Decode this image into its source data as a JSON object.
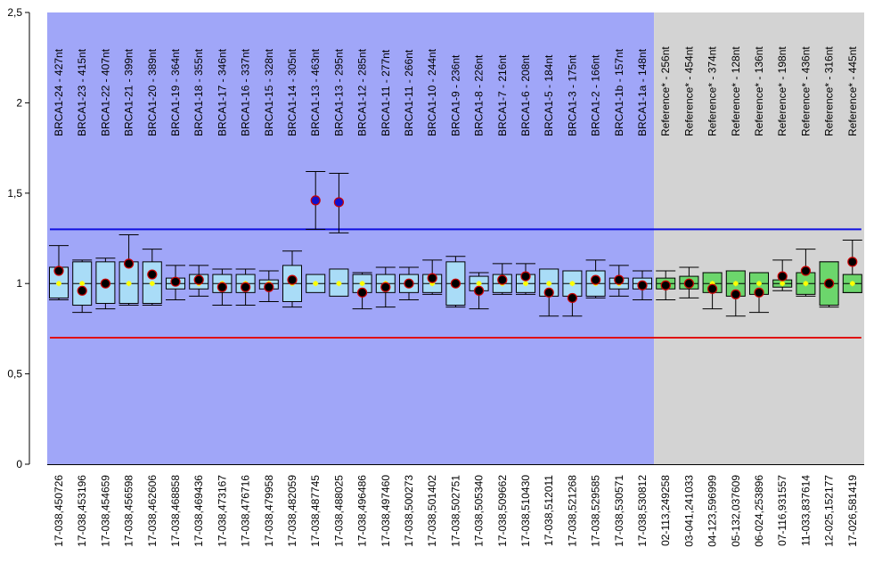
{
  "chart_data": {
    "type": "boxplot",
    "ylim": [
      0,
      2.5
    ],
    "yticks": [
      {
        "value": 0,
        "label": "0"
      },
      {
        "value": 0.5,
        "label": "0,5"
      },
      {
        "value": 1,
        "label": "1"
      },
      {
        "value": 1.5,
        "label": "1,5"
      },
      {
        "value": 2,
        "label": "2"
      },
      {
        "value": 2.5,
        "label": "2,5"
      }
    ],
    "threshold_upper": 1.3,
    "threshold_lower": 0.7,
    "colors": {
      "probe_region_bg": "#a0a6f8",
      "reference_region_bg": "#d3d3d3",
      "probe_box": "#a9dcf7",
      "reference_box": "#6cd66c",
      "upper_line": "#1010e0",
      "lower_line": "#e01010",
      "median_marker": "#ffff00",
      "sample_dot": "#000000",
      "sample_dot_border": "#cc0000",
      "outlier_dot": "#1010cc"
    },
    "probes": [
      {
        "group": "probe",
        "label": "BRCA1-24 - 427nt",
        "x": "17-038,450726",
        "q1": 0.92,
        "med": 1.0,
        "q3": 1.09,
        "wlo": 0.91,
        "whi": 1.21,
        "dot": 1.07,
        "outlier": false
      },
      {
        "group": "probe",
        "label": "BRCA1-23 - 415nt",
        "x": "17-038,453196",
        "q1": 0.88,
        "med": 1.0,
        "q3": 1.12,
        "wlo": 0.84,
        "whi": 1.13,
        "dot": 0.96,
        "outlier": false
      },
      {
        "group": "probe",
        "label": "BRCA1-22 - 407nt",
        "x": "17-038,454659",
        "q1": 0.89,
        "med": 1.0,
        "q3": 1.12,
        "wlo": 0.86,
        "whi": 1.14,
        "dot": 1.0,
        "outlier": false
      },
      {
        "group": "probe",
        "label": "BRCA1-21 - 399nt",
        "x": "17-038,456598",
        "q1": 0.89,
        "med": 1.0,
        "q3": 1.12,
        "wlo": 0.88,
        "whi": 1.27,
        "dot": 1.11,
        "outlier": false
      },
      {
        "group": "probe",
        "label": "BRCA1-20 - 389nt",
        "x": "17-038,462606",
        "q1": 0.89,
        "med": 1.0,
        "q3": 1.12,
        "wlo": 0.88,
        "whi": 1.19,
        "dot": 1.05,
        "outlier": false
      },
      {
        "group": "probe",
        "label": "BRCA1-19 - 364nt",
        "x": "17-038,468858",
        "q1": 0.97,
        "med": 1.0,
        "q3": 1.03,
        "wlo": 0.91,
        "whi": 1.1,
        "dot": 1.01,
        "outlier": false
      },
      {
        "group": "probe",
        "label": "BRCA1-18 - 355nt",
        "x": "17-038,469436",
        "q1": 0.97,
        "med": 1.0,
        "q3": 1.05,
        "wlo": 0.93,
        "whi": 1.1,
        "dot": 1.02,
        "outlier": false
      },
      {
        "group": "probe",
        "label": "BRCA1-17 - 346nt",
        "x": "17-038,473167",
        "q1": 0.95,
        "med": 1.0,
        "q3": 1.05,
        "wlo": 0.88,
        "whi": 1.08,
        "dot": 0.98,
        "outlier": false
      },
      {
        "group": "probe",
        "label": "BRCA1-16 - 337nt",
        "x": "17-038,476716",
        "q1": 0.95,
        "med": 1.0,
        "q3": 1.05,
        "wlo": 0.88,
        "whi": 1.08,
        "dot": 0.98,
        "outlier": false
      },
      {
        "group": "probe",
        "label": "BRCA1-15 - 328nt",
        "x": "17-038,479958",
        "q1": 0.97,
        "med": 1.0,
        "q3": 1.02,
        "wlo": 0.9,
        "whi": 1.07,
        "dot": 0.98,
        "outlier": false
      },
      {
        "group": "probe",
        "label": "BRCA1-14 - 305nt",
        "x": "17-038,482059",
        "q1": 0.9,
        "med": 1.0,
        "q3": 1.1,
        "wlo": 0.87,
        "whi": 1.18,
        "dot": 1.02,
        "outlier": false
      },
      {
        "group": "probe",
        "label": "BRCA1-13 - 463nt",
        "x": "17-038,487745",
        "q1": 0.95,
        "med": 1.0,
        "q3": 1.05,
        "wlo": 1.3,
        "whi": 1.62,
        "dot": 1.46,
        "outlier": true
      },
      {
        "group": "probe",
        "label": "BRCA1-13 - 295nt",
        "x": "17-038,488025",
        "q1": 0.93,
        "med": 1.0,
        "q3": 1.08,
        "wlo": 1.28,
        "whi": 1.61,
        "dot": 1.45,
        "outlier": true
      },
      {
        "group": "probe",
        "label": "BRCA1-12 - 285nt",
        "x": "17-038,496486",
        "q1": 0.95,
        "med": 1.0,
        "q3": 1.05,
        "wlo": 0.86,
        "whi": 1.06,
        "dot": 0.95,
        "outlier": false
      },
      {
        "group": "probe",
        "label": "BRCA1-11 - 277nt",
        "x": "17-038,497460",
        "q1": 0.95,
        "med": 1.0,
        "q3": 1.05,
        "wlo": 0.87,
        "whi": 1.09,
        "dot": 0.98,
        "outlier": false
      },
      {
        "group": "probe",
        "label": "BRCA1-11 - 266nt",
        "x": "17-038,500273",
        "q1": 0.95,
        "med": 1.0,
        "q3": 1.05,
        "wlo": 0.91,
        "whi": 1.09,
        "dot": 1.0,
        "outlier": false
      },
      {
        "group": "probe",
        "label": "BRCA1-10 - 244nt",
        "x": "17-038,501402",
        "q1": 0.95,
        "med": 1.0,
        "q3": 1.05,
        "wlo": 0.94,
        "whi": 1.13,
        "dot": 1.03,
        "outlier": false
      },
      {
        "group": "probe",
        "label": "BRCA1-9 - 236nt",
        "x": "17-038,502751",
        "q1": 0.88,
        "med": 1.0,
        "q3": 1.12,
        "wlo": 0.87,
        "whi": 1.15,
        "dot": 1.0,
        "outlier": false
      },
      {
        "group": "probe",
        "label": "BRCA1-8 - 226nt",
        "x": "17-038,505340",
        "q1": 0.96,
        "med": 1.0,
        "q3": 1.04,
        "wlo": 0.86,
        "whi": 1.06,
        "dot": 0.96,
        "outlier": false
      },
      {
        "group": "probe",
        "label": "BRCA1-7 - 216nt",
        "x": "17-038,509662",
        "q1": 0.95,
        "med": 1.0,
        "q3": 1.05,
        "wlo": 0.94,
        "whi": 1.11,
        "dot": 1.02,
        "outlier": false
      },
      {
        "group": "probe",
        "label": "BRCA1-6 - 208nt",
        "x": "17-038,510430",
        "q1": 0.95,
        "med": 1.0,
        "q3": 1.05,
        "wlo": 0.94,
        "whi": 1.11,
        "dot": 1.04,
        "outlier": false
      },
      {
        "group": "probe",
        "label": "BRCA1-5 - 184nt",
        "x": "17-038,512011",
        "q1": 0.93,
        "med": 1.0,
        "q3": 1.08,
        "wlo": 0.82,
        "whi": 1.08,
        "dot": 0.95,
        "outlier": false
      },
      {
        "group": "probe",
        "label": "BRCA1-3 - 175nt",
        "x": "17-038,521268",
        "q1": 0.93,
        "med": 1.0,
        "q3": 1.07,
        "wlo": 0.82,
        "whi": 1.07,
        "dot": 0.92,
        "outlier": false
      },
      {
        "group": "probe",
        "label": "BRCA1-2 - 166nt",
        "x": "17-038,529585",
        "q1": 0.93,
        "med": 1.0,
        "q3": 1.07,
        "wlo": 0.92,
        "whi": 1.13,
        "dot": 1.02,
        "outlier": false
      },
      {
        "group": "probe",
        "label": "BRCA1-1b - 157nt",
        "x": "17-038,530571",
        "q1": 0.97,
        "med": 1.0,
        "q3": 1.03,
        "wlo": 0.93,
        "whi": 1.1,
        "dot": 1.02,
        "outlier": false
      },
      {
        "group": "probe",
        "label": "BRCA1-1a - 148nt",
        "x": "17-038,530812",
        "q1": 0.97,
        "med": 1.0,
        "q3": 1.03,
        "wlo": 0.91,
        "whi": 1.07,
        "dot": 0.99,
        "outlier": false
      },
      {
        "group": "reference",
        "label": "Reference* - 256nt",
        "x": "02-113,249258",
        "q1": 0.97,
        "med": 1.0,
        "q3": 1.03,
        "wlo": 0.91,
        "whi": 1.07,
        "dot": 0.99,
        "outlier": false
      },
      {
        "group": "reference",
        "label": "Reference* - 454nt",
        "x": "03-041,241033",
        "q1": 0.97,
        "med": 1.0,
        "q3": 1.04,
        "wlo": 0.92,
        "whi": 1.09,
        "dot": 1.0,
        "outlier": false
      },
      {
        "group": "reference",
        "label": "Reference* - 374nt",
        "x": "04-123,596999",
        "q1": 0.95,
        "med": 1.0,
        "q3": 1.06,
        "wlo": 0.86,
        "whi": 1.06,
        "dot": 0.97,
        "outlier": false
      },
      {
        "group": "reference",
        "label": "Reference* - 128nt",
        "x": "05-132,037609",
        "q1": 0.93,
        "med": 1.0,
        "q3": 1.07,
        "wlo": 0.82,
        "whi": 1.07,
        "dot": 0.94,
        "outlier": false
      },
      {
        "group": "reference",
        "label": "Reference* - 136nt",
        "x": "06-024,253896",
        "q1": 0.94,
        "med": 1.0,
        "q3": 1.06,
        "wlo": 0.84,
        "whi": 1.06,
        "dot": 0.95,
        "outlier": false
      },
      {
        "group": "reference",
        "label": "Reference* - 198nt",
        "x": "07-116,931557",
        "q1": 0.98,
        "med": 1.0,
        "q3": 1.02,
        "wlo": 0.96,
        "whi": 1.13,
        "dot": 1.04,
        "outlier": false
      },
      {
        "group": "reference",
        "label": "Reference* - 436nt",
        "x": "11-033,837614",
        "q1": 0.94,
        "med": 1.0,
        "q3": 1.06,
        "wlo": 0.93,
        "whi": 1.19,
        "dot": 1.07,
        "outlier": false
      },
      {
        "group": "reference",
        "label": "Reference* - 316nt",
        "x": "12-025,152177",
        "q1": 0.88,
        "med": 1.0,
        "q3": 1.12,
        "wlo": 0.87,
        "whi": 1.12,
        "dot": 1.0,
        "outlier": false
      },
      {
        "group": "reference",
        "label": "Reference* - 445nt",
        "x": "17-026,581419",
        "q1": 0.95,
        "med": 1.0,
        "q3": 1.05,
        "wlo": 0.95,
        "whi": 1.24,
        "dot": 1.12,
        "outlier": false
      }
    ]
  }
}
